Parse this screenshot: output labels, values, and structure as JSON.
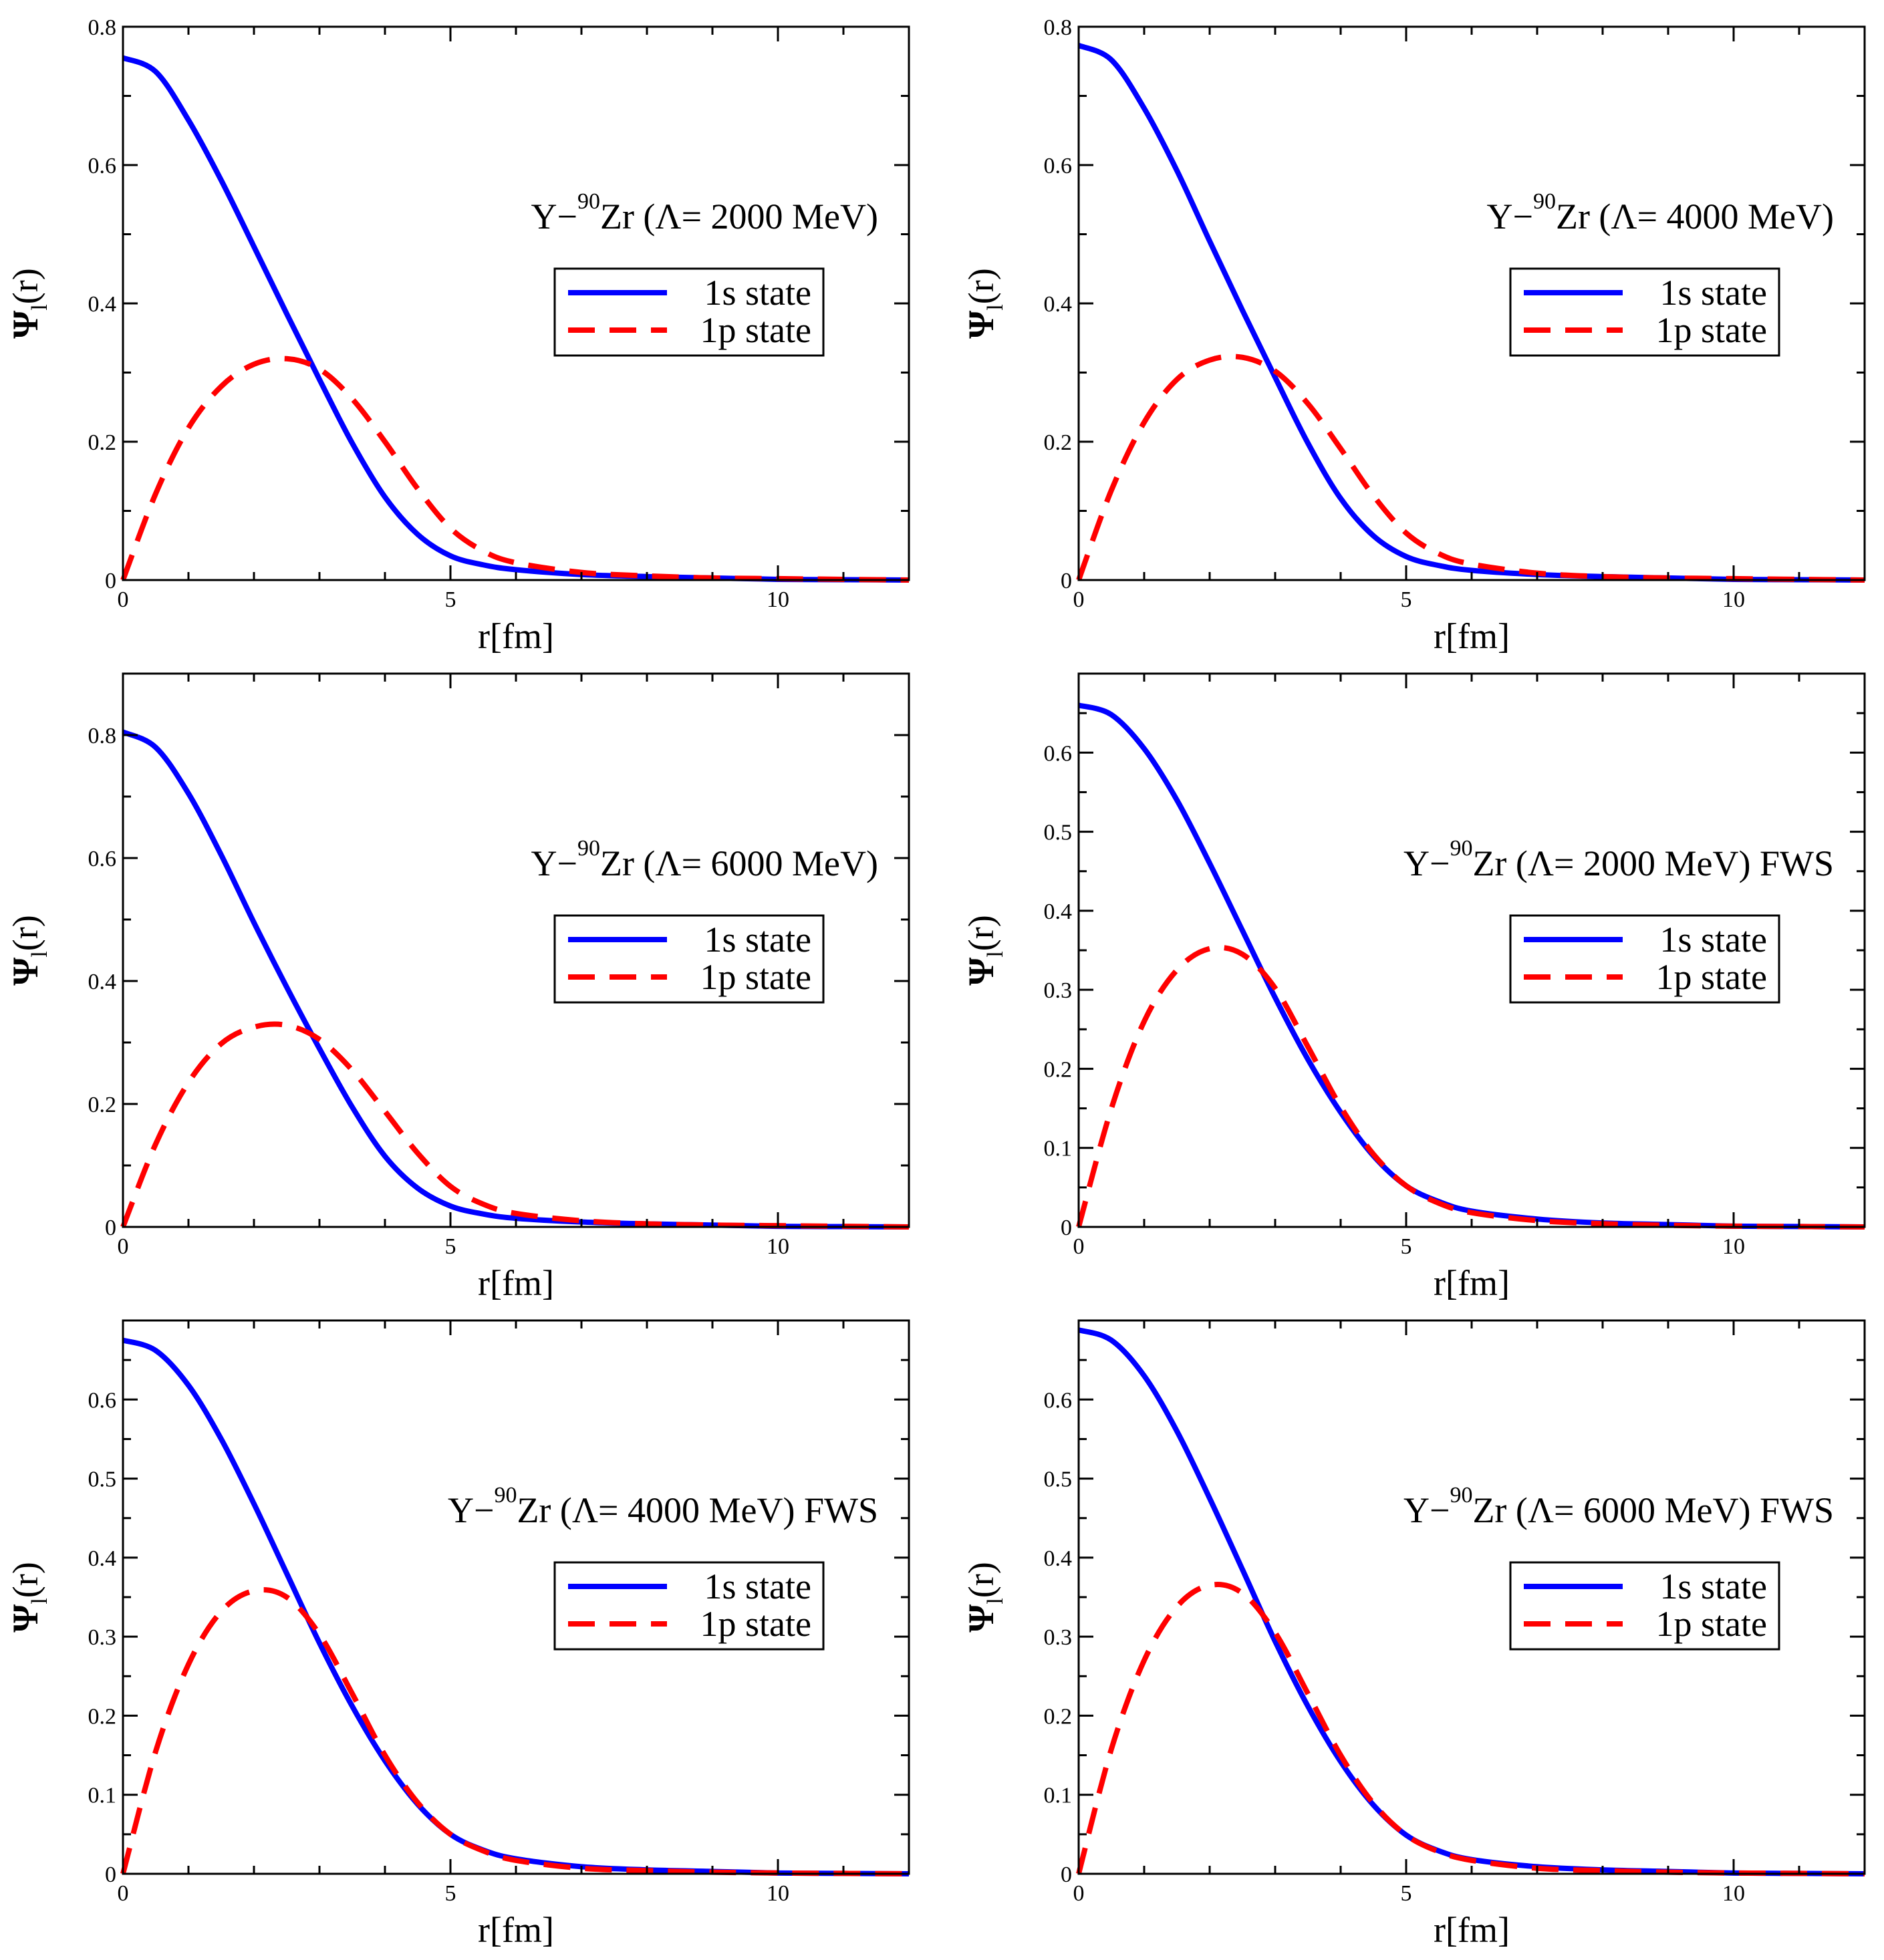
{
  "figure": {
    "xlabel": "r[fm]",
    "ylabel_main": "Ψ",
    "ylabel_sub": "l",
    "ylabel_tail": "(r)"
  },
  "chart_data": [
    {
      "type": "line",
      "annotation": {
        "pre": "Y−",
        "sup": "90",
        "post": "Zr (Λ= 2000 MeV)"
      },
      "xlabel": "r[fm]",
      "xlim": [
        0,
        12
      ],
      "ylim": [
        0,
        0.8
      ],
      "xticks": [
        0,
        5,
        10
      ],
      "xtick_labels": [
        "0",
        "5",
        "10"
      ],
      "yticks": [
        0,
        0.2,
        0.4,
        0.6,
        0.8
      ],
      "ytick_labels": [
        "0",
        "0.2",
        "0.4",
        "0.6",
        "0.8"
      ],
      "legend": "top-right",
      "series": [
        {
          "name": "1s state",
          "color": "#0000ff",
          "style": "solid",
          "x": [
            0,
            0.5,
            1,
            1.5,
            2,
            2.5,
            3,
            3.5,
            4,
            4.5,
            5,
            5.5,
            6,
            7,
            8,
            9,
            10,
            11,
            12
          ],
          "y": [
            0.755,
            0.735,
            0.665,
            0.578,
            0.482,
            0.385,
            0.29,
            0.198,
            0.12,
            0.066,
            0.035,
            0.022,
            0.015,
            0.008,
            0.005,
            0.003,
            0.001,
            0.0005,
            0
          ]
        },
        {
          "name": "1p state",
          "color": "#ff0000",
          "style": "dashed",
          "x": [
            0,
            0.5,
            1,
            1.5,
            2,
            2.5,
            3,
            3.5,
            4,
            4.5,
            5,
            5.5,
            6,
            7,
            8,
            9,
            10,
            11,
            12
          ],
          "y": [
            0,
            0.125,
            0.22,
            0.28,
            0.312,
            0.32,
            0.305,
            0.262,
            0.2,
            0.132,
            0.075,
            0.042,
            0.025,
            0.011,
            0.006,
            0.003,
            0.002,
            0.001,
            0
          ]
        }
      ]
    },
    {
      "type": "line",
      "annotation": {
        "pre": "Y−",
        "sup": "90",
        "post": "Zr (Λ= 4000 MeV)"
      },
      "xlabel": "r[fm]",
      "xlim": [
        0,
        12
      ],
      "ylim": [
        0,
        0.8
      ],
      "xticks": [
        0,
        5,
        10
      ],
      "xtick_labels": [
        "0",
        "5",
        "10"
      ],
      "yticks": [
        0,
        0.2,
        0.4,
        0.6,
        0.8
      ],
      "ytick_labels": [
        "0",
        "0.2",
        "0.4",
        "0.6",
        "0.8"
      ],
      "legend": "top-right",
      "series": [
        {
          "name": "1s state",
          "color": "#0000ff",
          "style": "solid",
          "x": [
            0,
            0.5,
            1,
            1.5,
            2,
            2.5,
            3,
            3.5,
            4,
            4.5,
            5,
            5.5,
            6,
            7,
            8,
            9,
            10,
            11,
            12
          ],
          "y": [
            0.773,
            0.752,
            0.682,
            0.592,
            0.49,
            0.39,
            0.293,
            0.198,
            0.118,
            0.064,
            0.034,
            0.021,
            0.014,
            0.008,
            0.005,
            0.003,
            0.001,
            0.0005,
            0
          ]
        },
        {
          "name": "1p state",
          "color": "#ff0000",
          "style": "dashed",
          "x": [
            0,
            0.5,
            1,
            1.5,
            2,
            2.5,
            3,
            3.5,
            4,
            4.5,
            5,
            5.5,
            6,
            7,
            8,
            9,
            10,
            11,
            12
          ],
          "y": [
            0,
            0.13,
            0.228,
            0.29,
            0.318,
            0.322,
            0.302,
            0.255,
            0.19,
            0.122,
            0.068,
            0.038,
            0.023,
            0.01,
            0.005,
            0.003,
            0.002,
            0.001,
            0
          ]
        }
      ]
    },
    {
      "type": "line",
      "annotation": {
        "pre": "Y−",
        "sup": "90",
        "post": "Zr (Λ= 6000 MeV)"
      },
      "xlabel": "r[fm]",
      "xlim": [
        0,
        12
      ],
      "ylim": [
        0,
        0.9
      ],
      "xticks": [
        0,
        5,
        10
      ],
      "xtick_labels": [
        "0",
        "5",
        "10"
      ],
      "yticks": [
        0,
        0.2,
        0.4,
        0.6,
        0.8
      ],
      "ytick_labels": [
        "0",
        "0.2",
        "0.4",
        "0.6",
        "0.8"
      ],
      "legend": "top-right",
      "series": [
        {
          "name": "1s state",
          "color": "#0000ff",
          "style": "solid",
          "x": [
            0,
            0.5,
            1,
            1.5,
            2,
            2.5,
            3,
            3.5,
            4,
            4.5,
            5,
            5.5,
            6,
            7,
            8,
            9,
            10,
            11,
            12
          ],
          "y": [
            0.805,
            0.78,
            0.705,
            0.605,
            0.495,
            0.39,
            0.29,
            0.195,
            0.115,
            0.063,
            0.034,
            0.021,
            0.014,
            0.008,
            0.005,
            0.003,
            0.001,
            0.0005,
            0
          ]
        },
        {
          "name": "1p state",
          "color": "#ff0000",
          "style": "dashed",
          "x": [
            0,
            0.5,
            1,
            1.5,
            2,
            2.5,
            3,
            3.5,
            4,
            4.5,
            5,
            5.5,
            6,
            7,
            8,
            9,
            10,
            11,
            12
          ],
          "y": [
            0,
            0.135,
            0.235,
            0.298,
            0.325,
            0.328,
            0.305,
            0.255,
            0.188,
            0.12,
            0.066,
            0.037,
            0.022,
            0.01,
            0.005,
            0.003,
            0.002,
            0.001,
            0
          ]
        }
      ]
    },
    {
      "type": "line",
      "annotation": {
        "pre": "Y−",
        "sup": "90",
        "post": "Zr (Λ= 2000 MeV) FWS"
      },
      "xlabel": "r[fm]",
      "xlim": [
        0,
        12
      ],
      "ylim": [
        0,
        0.7
      ],
      "xticks": [
        0,
        5,
        10
      ],
      "xtick_labels": [
        "0",
        "5",
        "10"
      ],
      "yticks": [
        0,
        0.1,
        0.2,
        0.3,
        0.4,
        0.5,
        0.6
      ],
      "ytick_labels": [
        "0",
        "0.1",
        "0.2",
        "0.3",
        "0.4",
        "0.5",
        "0.6"
      ],
      "legend": "top-right",
      "series": [
        {
          "name": "1s state",
          "color": "#0000ff",
          "style": "solid",
          "x": [
            0,
            0.5,
            1,
            1.5,
            2,
            2.5,
            3,
            3.5,
            4,
            4.5,
            5,
            5.5,
            6,
            7,
            8,
            9,
            10,
            11,
            12
          ],
          "y": [
            0.66,
            0.648,
            0.605,
            0.54,
            0.46,
            0.375,
            0.29,
            0.212,
            0.145,
            0.09,
            0.052,
            0.032,
            0.02,
            0.01,
            0.005,
            0.003,
            0.001,
            0.0005,
            0
          ]
        },
        {
          "name": "1p state",
          "color": "#ff0000",
          "style": "dashed",
          "x": [
            0,
            0.5,
            1,
            1.5,
            2,
            2.5,
            3,
            3.5,
            4,
            4.5,
            5,
            5.5,
            6,
            7,
            8,
            9,
            10,
            11,
            12
          ],
          "y": [
            0,
            0.15,
            0.26,
            0.325,
            0.352,
            0.345,
            0.302,
            0.228,
            0.152,
            0.092,
            0.052,
            0.03,
            0.018,
            0.008,
            0.004,
            0.002,
            0.001,
            0.0005,
            0
          ]
        }
      ]
    },
    {
      "type": "line",
      "annotation": {
        "pre": "Y−",
        "sup": "90",
        "post": "Zr (Λ= 4000 MeV) FWS"
      },
      "xlabel": "r[fm]",
      "xlim": [
        0,
        12
      ],
      "ylim": [
        0,
        0.7
      ],
      "xticks": [
        0,
        5,
        10
      ],
      "xtick_labels": [
        "0",
        "5",
        "10"
      ],
      "yticks": [
        0,
        0.1,
        0.2,
        0.3,
        0.4,
        0.5,
        0.6
      ],
      "ytick_labels": [
        "0",
        "0.1",
        "0.2",
        "0.3",
        "0.4",
        "0.5",
        "0.6"
      ],
      "legend": "top-right",
      "series": [
        {
          "name": "1s state",
          "color": "#0000ff",
          "style": "solid",
          "x": [
            0,
            0.5,
            1,
            1.5,
            2,
            2.5,
            3,
            3.5,
            4,
            4.5,
            5,
            5.5,
            6,
            7,
            8,
            9,
            10,
            11,
            12
          ],
          "y": [
            0.675,
            0.662,
            0.618,
            0.55,
            0.468,
            0.38,
            0.292,
            0.212,
            0.143,
            0.088,
            0.05,
            0.03,
            0.019,
            0.009,
            0.005,
            0.003,
            0.001,
            0.0005,
            0
          ]
        },
        {
          "name": "1p state",
          "color": "#ff0000",
          "style": "dashed",
          "x": [
            0,
            0.5,
            1,
            1.5,
            2,
            2.5,
            3,
            3.5,
            4,
            4.5,
            5,
            5.5,
            6,
            7,
            8,
            9,
            10,
            11,
            12
          ],
          "y": [
            0,
            0.155,
            0.265,
            0.332,
            0.358,
            0.35,
            0.303,
            0.228,
            0.15,
            0.09,
            0.05,
            0.029,
            0.017,
            0.007,
            0.004,
            0.002,
            0.001,
            0.0005,
            0
          ]
        }
      ]
    },
    {
      "type": "line",
      "annotation": {
        "pre": "Y−",
        "sup": "90",
        "post": "Zr (Λ= 6000 MeV) FWS"
      },
      "xlabel": "r[fm]",
      "xlim": [
        0,
        12
      ],
      "ylim": [
        0,
        0.7
      ],
      "xticks": [
        0,
        5,
        10
      ],
      "xtick_labels": [
        "0",
        "5",
        "10"
      ],
      "yticks": [
        0,
        0.1,
        0.2,
        0.3,
        0.4,
        0.5,
        0.6
      ],
      "ytick_labels": [
        "0",
        "0.1",
        "0.2",
        "0.3",
        "0.4",
        "0.5",
        "0.6"
      ],
      "legend": "top-right",
      "series": [
        {
          "name": "1s state",
          "color": "#0000ff",
          "style": "solid",
          "x": [
            0,
            0.5,
            1,
            1.5,
            2,
            2.5,
            3,
            3.5,
            4,
            4.5,
            5,
            5.5,
            6,
            7,
            8,
            9,
            10,
            11,
            12
          ],
          "y": [
            0.688,
            0.675,
            0.63,
            0.56,
            0.475,
            0.385,
            0.294,
            0.212,
            0.142,
            0.087,
            0.049,
            0.029,
            0.018,
            0.009,
            0.005,
            0.003,
            0.001,
            0.0005,
            0
          ]
        },
        {
          "name": "1p state",
          "color": "#ff0000",
          "style": "dashed",
          "x": [
            0,
            0.5,
            1,
            1.5,
            2,
            2.5,
            3,
            3.5,
            4,
            4.5,
            5,
            5.5,
            6,
            7,
            8,
            9,
            10,
            11,
            12
          ],
          "y": [
            0,
            0.158,
            0.27,
            0.338,
            0.365,
            0.355,
            0.305,
            0.228,
            0.15,
            0.089,
            0.049,
            0.028,
            0.017,
            0.007,
            0.004,
            0.002,
            0.001,
            0.0005,
            0
          ]
        }
      ]
    }
  ]
}
